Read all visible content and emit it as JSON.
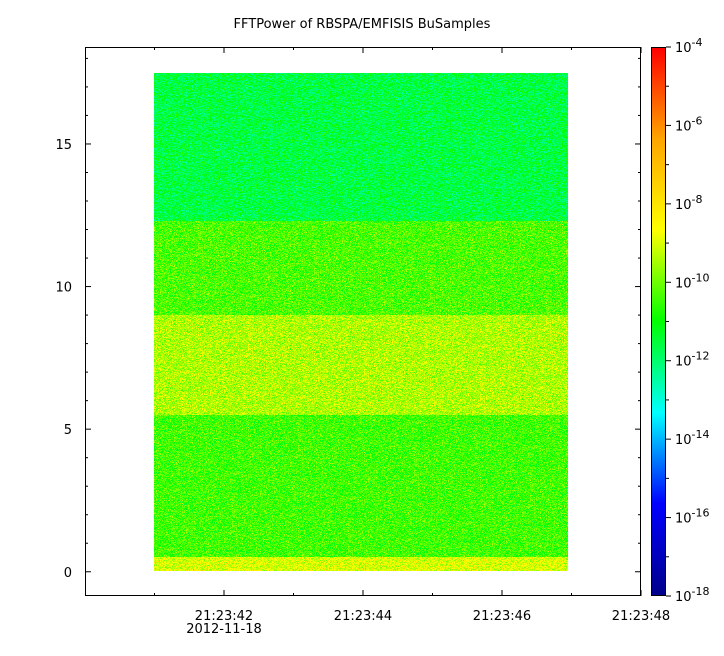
{
  "title": "FFTPower of RBSPA/EMFISIS  BuSamples",
  "chart_data": {
    "type": "heatmap",
    "title": "FFTPower of RBSPA/EMFISIS  BuSamples",
    "xlabel": "",
    "ylabel": "",
    "x_ticks": [
      "21:23:42",
      "21:23:44",
      "21:23:46",
      "21:23:48"
    ],
    "x_date_label": "2012-11-18",
    "x_range": [
      "21:23:40.0",
      "21:23:48.0"
    ],
    "data_x_range": [
      "21:23:41.0",
      "21:23:47.0"
    ],
    "y_ticks": [
      0,
      5,
      10,
      15
    ],
    "ylim": [
      -0.85,
      18.4
    ],
    "data_y_range": [
      0,
      17.5
    ],
    "colorbar": {
      "scale": "log",
      "range": [
        1e-18,
        0.0001
      ],
      "tick_exponents": [
        -4,
        -6,
        -8,
        -10,
        -12,
        -14,
        -16,
        -18
      ],
      "colors": [
        "#00008b",
        "#0000ff",
        "#00ffff",
        "#00ff00",
        "#ffff00",
        "#ffa500",
        "#ff0000"
      ]
    },
    "bands": [
      {
        "y_from": 0.0,
        "y_to": 0.5,
        "level_exp": -9.0
      },
      {
        "y_from": 0.5,
        "y_to": 5.5,
        "level_exp": -10.4
      },
      {
        "y_from": 5.5,
        "y_to": 9.0,
        "level_exp": -9.4
      },
      {
        "y_from": 9.0,
        "y_to": 12.3,
        "level_exp": -10.3
      },
      {
        "y_from": 12.3,
        "y_to": 17.5,
        "level_exp": -11.6
      }
    ]
  }
}
